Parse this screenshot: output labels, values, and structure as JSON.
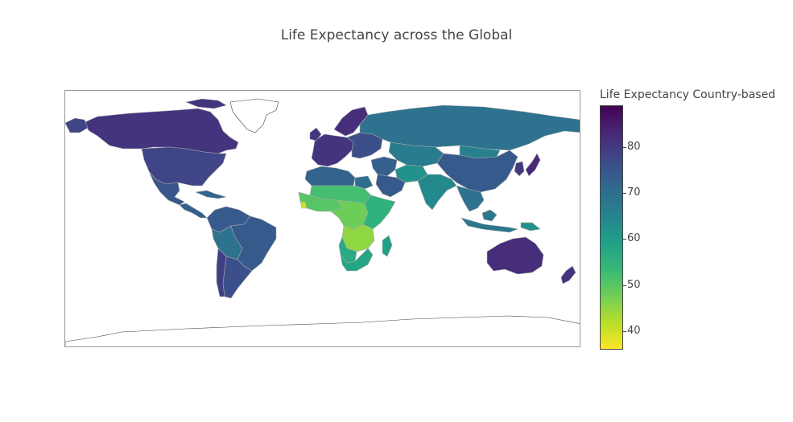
{
  "title": "Life Expectancy across the Global",
  "colorbar": {
    "title": "Life Expectancy Country-based",
    "min": 36,
    "max": 89,
    "ticks": [
      "40",
      "50",
      "60",
      "70",
      "80"
    ],
    "tick_values": [
      40,
      50,
      60,
      70,
      80
    ],
    "colorscale": [
      "#fde725",
      "#b5de2b",
      "#6ece58",
      "#35b779",
      "#1f9e89",
      "#26828e",
      "#31688e",
      "#3e4989",
      "#482878",
      "#440154"
    ]
  },
  "map": {
    "projection": "equirectangular",
    "land_border_color": "#aaaaaa",
    "no_data_color": "#ffffff",
    "regions": [
      {
        "name": "Canada",
        "value": 81
      },
      {
        "name": "United States",
        "value": 78
      },
      {
        "name": "Mexico",
        "value": 75
      },
      {
        "name": "Central America",
        "value": 73
      },
      {
        "name": "Caribbean",
        "value": 72
      },
      {
        "name": "Colombia/Venezuela",
        "value": 74
      },
      {
        "name": "Brazil",
        "value": 74
      },
      {
        "name": "Peru/Bolivia",
        "value": 69
      },
      {
        "name": "Argentina",
        "value": 76
      },
      {
        "name": "Chile",
        "value": 79
      },
      {
        "name": "Greenland",
        "value": null
      },
      {
        "name": "Western Europe",
        "value": 81
      },
      {
        "name": "Scandinavia",
        "value": 82
      },
      {
        "name": "Eastern Europe",
        "value": 76
      },
      {
        "name": "Russia",
        "value": 69
      },
      {
        "name": "Central Asia",
        "value": 67
      },
      {
        "name": "China",
        "value": 74
      },
      {
        "name": "Mongolia",
        "value": 66
      },
      {
        "name": "Japan",
        "value": 83
      },
      {
        "name": "Korea",
        "value": 80
      },
      {
        "name": "India",
        "value": 64
      },
      {
        "name": "Southeast Asia",
        "value": 69
      },
      {
        "name": "Indonesia",
        "value": 68
      },
      {
        "name": "Papua New Guinea",
        "value": 62
      },
      {
        "name": "Australia",
        "value": 82
      },
      {
        "name": "New Zealand",
        "value": 81
      },
      {
        "name": "Middle East",
        "value": 73
      },
      {
        "name": "Arabian Peninsula",
        "value": 74
      },
      {
        "name": "Iran/Afghanistan",
        "value": 62
      },
      {
        "name": "North Africa",
        "value": 72
      },
      {
        "name": "Egypt",
        "value": 70
      },
      {
        "name": "Sahel",
        "value": 52
      },
      {
        "name": "West Africa",
        "value": 50
      },
      {
        "name": "Sierra Leone",
        "value": 40
      },
      {
        "name": "Central Africa",
        "value": 48
      },
      {
        "name": "East Africa",
        "value": 55
      },
      {
        "name": "Southern Central Africa",
        "value": 45
      },
      {
        "name": "Madagascar",
        "value": 59
      },
      {
        "name": "South Africa",
        "value": 58
      },
      {
        "name": "Namibia/Botswana",
        "value": 57
      },
      {
        "name": "Antarctica",
        "value": null
      }
    ]
  }
}
